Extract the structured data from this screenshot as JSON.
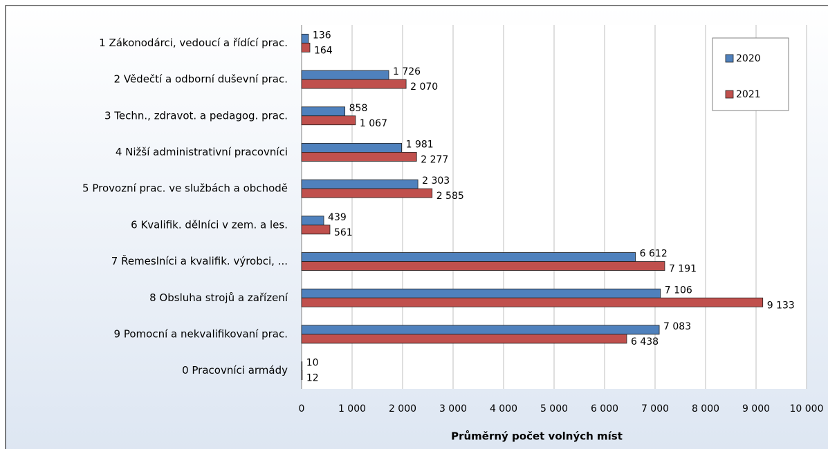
{
  "chart_data": {
    "type": "hbar",
    "x_axis_label": "Průměrný počet volných míst",
    "categories": [
      "1 Zákonodárci, vedoucí a řídící prac.",
      "2 Vědečtí a odborní duševní prac.",
      "3 Techn., zdravot. a pedagog. prac.",
      "4 Nižší administrativní pracovníci",
      "5 Provozní prac. ve službách a obchodě",
      "6 Kvalifik. dělníci v zem. a les.",
      "7 Řemeslníci  a kvalifik.  výrobci, ...",
      "8 Obsluha strojů a zařízení",
      "9 Pomocní a nekvalifikovaní prac.",
      "0 Pracovníci armády"
    ],
    "series": [
      {
        "name": "2020",
        "color": "#4f81bd",
        "values": [
          136,
          1726,
          858,
          1981,
          2303,
          439,
          6612,
          7106,
          7083,
          10
        ],
        "value_labels": [
          "136",
          "1 726",
          "858",
          "1 981",
          "2 303",
          "439",
          "6 612",
          "7 106",
          "7 083",
          "10"
        ]
      },
      {
        "name": "2021",
        "color": "#c0504d",
        "values": [
          164,
          2070,
          1067,
          2277,
          2585,
          561,
          7191,
          9133,
          6438,
          12
        ],
        "value_labels": [
          "164",
          "2 070",
          "1 067",
          "2 277",
          "2 585",
          "561",
          "7 191",
          "9 133",
          "6 438",
          "12"
        ]
      }
    ],
    "xlim": [
      0,
      10000
    ],
    "xticks": [
      0,
      {
        "value": 1000,
        "label": "1 000"
      },
      {
        "value": 2000,
        "label": "2 000"
      },
      {
        "value": 3000,
        "label": "3 000"
      },
      {
        "value": 4000,
        "label": "4 000"
      },
      {
        "value": 5000,
        "label": "5 000"
      },
      {
        "value": 6000,
        "label": "6 000"
      },
      {
        "value": 7000,
        "label": "7 000"
      },
      {
        "value": 8000,
        "label": "8 000"
      },
      {
        "value": 9000,
        "label": "9 000"
      },
      {
        "value": 10000,
        "label": "10 000"
      }
    ],
    "grid": true,
    "legend": "top-right"
  }
}
